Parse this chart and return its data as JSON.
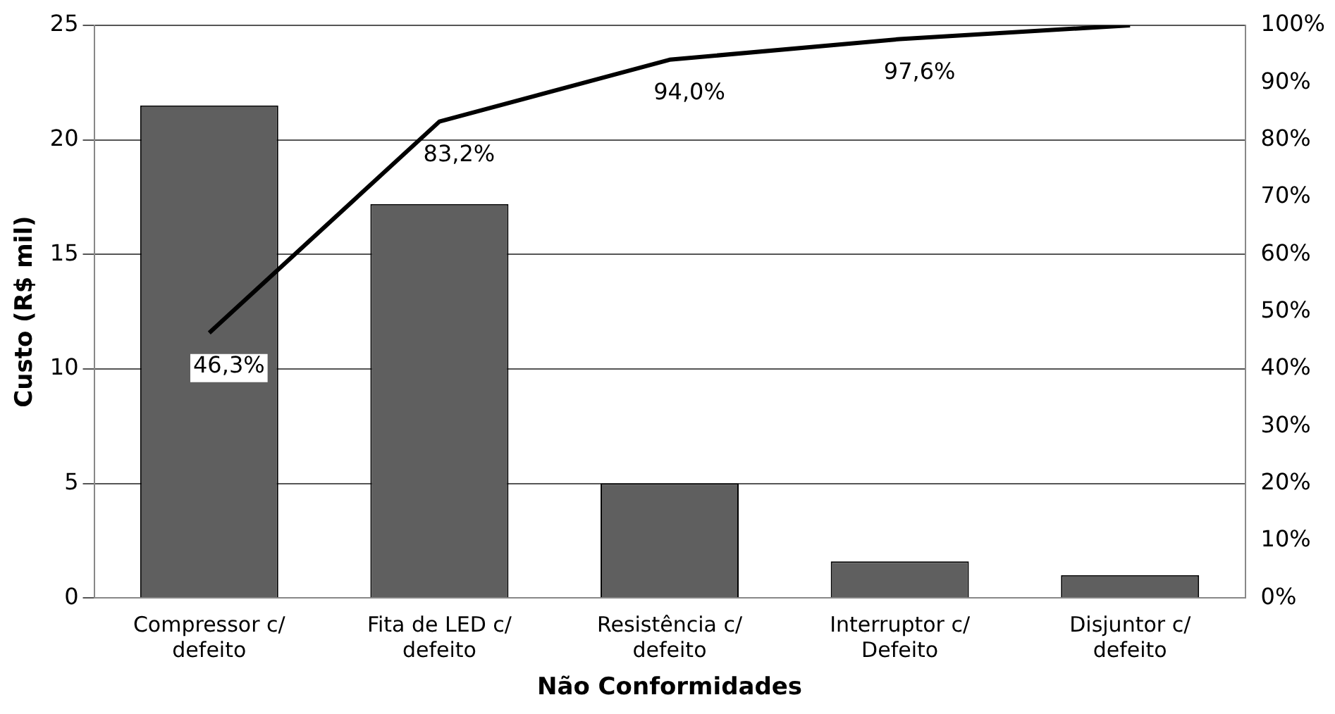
{
  "chart_data": {
    "type": "bar",
    "xlabel": "Não Conformidades",
    "ylabel": "Custo (R$ mil)",
    "categories": [
      "Compressor c/\ndefeito",
      "Fita de LED c/\ndefeito",
      "Resistência c/\ndefeito",
      "Interruptor c/\nDefeito",
      "Disjuntor c/\ndefeito"
    ],
    "series": [
      {
        "color": "#5f5f5f",
        "values": [
          21.5,
          17.2,
          5.0,
          1.6,
          1.0
        ]
      },
      {
        "type": "line",
        "axis": "y2",
        "color": "#000000",
        "values": [
          46.3,
          83.2,
          94.0,
          97.6,
          100
        ],
        "value_labels": [
          "46,3%",
          "83,2%",
          "94,0%",
          "97,6%",
          null
        ]
      }
    ],
    "ylim": [
      0,
      25
    ],
    "yticks": [
      0,
      5,
      10,
      15,
      20,
      25
    ],
    "y2lim": [
      0,
      100
    ],
    "y2ticks": [
      {
        "value": 0,
        "label": "0%"
      },
      {
        "value": 10,
        "label": "10%"
      },
      {
        "value": 20,
        "label": "20%"
      },
      {
        "value": 30,
        "label": "30%"
      },
      {
        "value": 40,
        "label": "40%"
      },
      {
        "value": 50,
        "label": "50%"
      },
      {
        "value": 60,
        "label": "60%"
      },
      {
        "value": 70,
        "label": "70%"
      },
      {
        "value": 80,
        "label": "80%"
      },
      {
        "value": 90,
        "label": "90%"
      },
      {
        "value": 100,
        "label": "100%"
      }
    ],
    "grid": "y",
    "legend": false,
    "marker": "none"
  }
}
